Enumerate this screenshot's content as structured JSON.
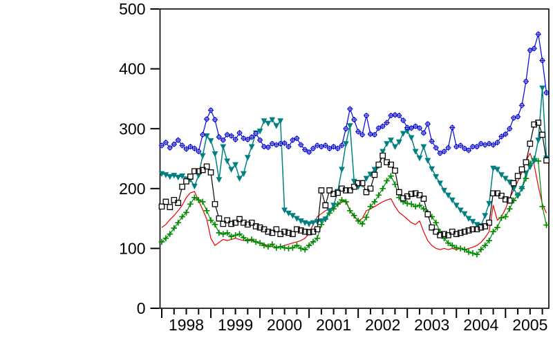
{
  "figure": {
    "background": "#ffffff",
    "frame_color": "#000000"
  },
  "chart_data": {
    "type": "line",
    "title": "",
    "xlabel": "",
    "ylabel": "",
    "legend": "none",
    "grid": "off",
    "x_axis": {
      "interval": "monthly",
      "start": "1998-01",
      "end": "2005-11",
      "year_labels": [
        "1998",
        "1999",
        "2000",
        "2001",
        "2002",
        "2003",
        "2004",
        "2005"
      ],
      "minor_tick_months": 3
    },
    "y_axis": {
      "range": [
        0,
        500
      ],
      "ticks": [
        "0",
        "100",
        "200",
        "300",
        "400",
        "500"
      ]
    },
    "series": [
      {
        "name": "red-line",
        "color": "#E60000",
        "marker": "none",
        "line_width": 1.2,
        "values": [
          135,
          140,
          148,
          155,
          163,
          172,
          185,
          193,
          195,
          180,
          165,
          149,
          117,
          105,
          110,
          115,
          113,
          115,
          117,
          115,
          113,
          115,
          113,
          111,
          109,
          107,
          105,
          103,
          101,
          103,
          105,
          107,
          109,
          111,
          113,
          117,
          125,
          140,
          153,
          158,
          163,
          166,
          168,
          172,
          178,
          180,
          163,
          153,
          146,
          150,
          163,
          166,
          170,
          174,
          178,
          181,
          183,
          170,
          160,
          155,
          149,
          143,
          140,
          146,
          128,
          113,
          105,
          100,
          98,
          100,
          98,
          100,
          98,
          100,
          98,
          100,
          102,
          105,
          110,
          118,
          128,
          172,
          147,
          153,
          166,
          184,
          197,
          212,
          227,
          246,
          259,
          240,
          204,
          174,
          159
        ]
      },
      {
        "name": "green-plus",
        "color": "#008A00",
        "marker": "plus",
        "line_width": 1.2,
        "values": [
          111,
          117,
          124,
          134,
          143,
          153,
          160,
          174,
          185,
          181,
          178,
          163,
          147,
          140,
          126,
          124,
          126,
          120,
          122,
          124,
          118,
          113,
          115,
          111,
          109,
          105,
          103,
          107,
          101,
          103,
          101,
          100,
          101,
          105,
          100,
          98,
          105,
          111,
          117,
          140,
          149,
          159,
          166,
          174,
          181,
          178,
          163,
          155,
          146,
          141,
          152,
          170,
          178,
          189,
          200,
          213,
          221,
          207,
          185,
          178,
          175,
          174,
          170,
          172,
          166,
          160,
          153,
          143,
          128,
          117,
          109,
          105,
          101,
          100,
          98,
          94,
          92,
          90,
          98,
          105,
          113,
          128,
          135,
          151,
          153,
          166,
          180,
          189,
          200,
          217,
          242,
          250,
          246,
          170,
          139
        ]
      },
      {
        "name": "teal-triangles",
        "color": "#008080",
        "marker": "triangle-down-filled",
        "line_width": 1.5,
        "values": [
          225,
          223,
          220,
          222,
          219,
          221,
          216,
          215,
          204,
          222,
          255,
          288,
          280,
          258,
          215,
          270,
          246,
          232,
          240,
          217,
          225,
          252,
          270,
          293,
          296,
          313,
          309,
          315,
          305,
          313,
          164,
          159,
          155,
          150,
          146,
          143,
          141,
          143,
          145,
          146,
          149,
          163,
          172,
          195,
          232,
          275,
          305,
          212,
          203,
          207,
          217,
          224,
          232,
          238,
          262,
          275,
          281,
          270,
          278,
          292,
          296,
          285,
          262,
          251,
          270,
          247,
          233,
          220,
          209,
          197,
          189,
          181,
          172,
          164,
          158,
          150,
          145,
          140,
          138,
          155,
          175,
          234,
          232,
          223,
          217,
          211,
          200,
          188,
          200,
          226,
          236,
          246,
          281,
          368,
          251
        ]
      },
      {
        "name": "black-squares",
        "color": "#000000",
        "marker": "square-open",
        "line_width": 1.2,
        "values": [
          170,
          178,
          169,
          181,
          176,
          203,
          212,
          220,
          229,
          229,
          231,
          237,
          227,
          174,
          150,
          141,
          147,
          141,
          143,
          149,
          143,
          140,
          143,
          137,
          135,
          132,
          128,
          126,
          132,
          124,
          128,
          126,
          124,
          132,
          130,
          128,
          127,
          128,
          132,
          197,
          172,
          197,
          191,
          193,
          200,
          197,
          197,
          203,
          209,
          209,
          194,
          200,
          223,
          240,
          255,
          244,
          240,
          230,
          194,
          184,
          187,
          191,
          192,
          189,
          183,
          157,
          135,
          128,
          122,
          124,
          122,
          128,
          124,
          126,
          128,
          130,
          132,
          132,
          135,
          137,
          143,
          192,
          192,
          188,
          182,
          180,
          209,
          221,
          232,
          244,
          275,
          307,
          310,
          290,
          247
        ]
      },
      {
        "name": "blue-open-circles",
        "color": "#0000DD",
        "marker": "circle-cross-open",
        "line_width": 1.2,
        "values": [
          272,
          277,
          268,
          274,
          281,
          272,
          266,
          270,
          267,
          262,
          290,
          316,
          331,
          315,
          286,
          281,
          290,
          288,
          282,
          293,
          284,
          282,
          286,
          292,
          281,
          270,
          269,
          275,
          273,
          275,
          276,
          270,
          281,
          284,
          273,
          265,
          261,
          267,
          272,
          270,
          272,
          267,
          270,
          267,
          272,
          300,
          333,
          315,
          295,
          290,
          322,
          291,
          290,
          301,
          304,
          310,
          322,
          323,
          322,
          314,
          302,
          301,
          304,
          301,
          293,
          308,
          279,
          268,
          259,
          262,
          268,
          302,
          270,
          272,
          267,
          264,
          270,
          270,
          275,
          273,
          275,
          273,
          277,
          287,
          291,
          300,
          318,
          320,
          339,
          379,
          431,
          434,
          458,
          414,
          360
        ]
      }
    ]
  }
}
